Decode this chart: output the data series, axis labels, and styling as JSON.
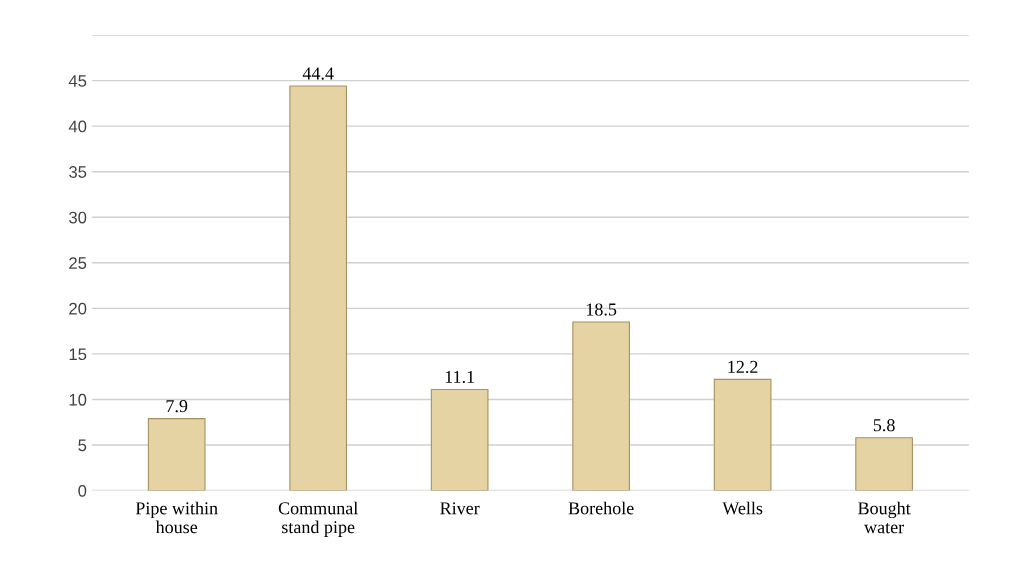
{
  "chart_data": {
    "type": "bar",
    "categories": [
      "Pipe within\nhouse",
      "Communal\nstand pipe",
      "River",
      "Borehole",
      "Wells",
      "Bought\nwater"
    ],
    "values": [
      7.9,
      44.4,
      11.1,
      18.5,
      12.2,
      5.8
    ],
    "color": "#e6d3a3",
    "ylim": [
      0,
      50
    ],
    "yticks": [
      0,
      5,
      10,
      15,
      20,
      25,
      30,
      35,
      40,
      45,
      {
        "value": 50,
        "label": null
      }
    ],
    "grid": "y",
    "data_labels": true
  }
}
